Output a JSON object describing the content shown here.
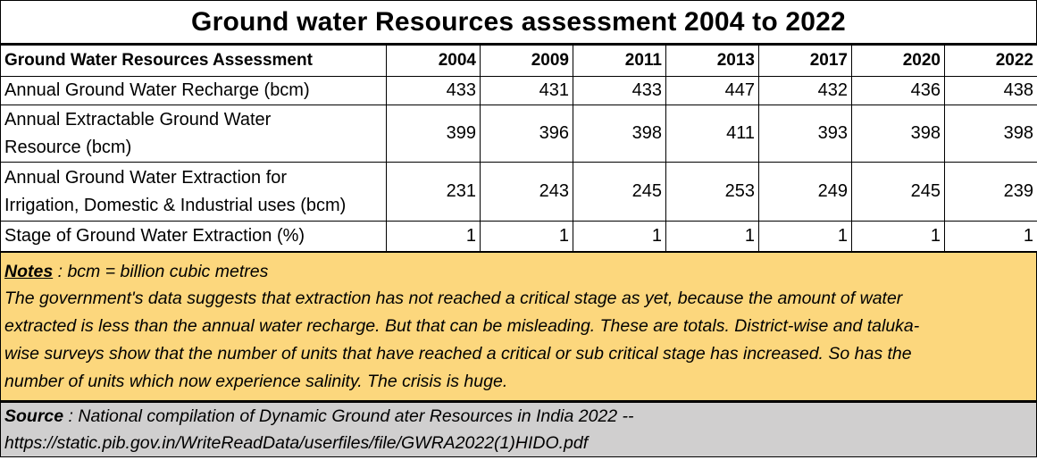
{
  "title": "Ground water Resources assessment 2004 to 2022",
  "table": {
    "header_label": "Ground Water Resources Assessment",
    "years": [
      "2004",
      "2009",
      "2011",
      "2013",
      "2017",
      "2020",
      "2022"
    ],
    "rows": [
      {
        "label_lines": [
          "Annual Ground Water Recharge (bcm)"
        ],
        "values": [
          "433",
          "431",
          "433",
          "447",
          "432",
          "436",
          "438"
        ]
      },
      {
        "label_lines": [
          "Annual Extractable Ground Water",
          "Resource (bcm)"
        ],
        "values": [
          "399",
          "396",
          "398",
          "411",
          "393",
          "398",
          "398"
        ]
      },
      {
        "label_lines": [
          "Annual Ground Water Extraction for",
          "Irrigation, Domestic & Industrial uses (bcm)"
        ],
        "values": [
          "231",
          "243",
          "245",
          "253",
          "249",
          "245",
          "239"
        ]
      },
      {
        "label_lines": [
          "Stage of Ground Water Extraction (%)"
        ],
        "values": [
          "1",
          "1",
          "1",
          "1",
          "1",
          "1",
          "1"
        ]
      }
    ]
  },
  "notes": {
    "keyword": "Notes",
    "definition": " : bcm = billion cubic metres",
    "lines": [
      "The government's data suggests that extraction has not reached a critical stage as yet, because the amount of water",
      "extracted is less than the annual water recharge.  But that can be misleading.  These are totals.  District-wise and taluka-",
      "wise surveys show that the number of units that have reached a critical or sub critical stage has increased.  So has the",
      "number of units which now experience salinity.  The crisis is huge."
    ],
    "background_color": "#fcd77d"
  },
  "source": {
    "keyword": "Source",
    "line1": " : National compilation of  Dynamic Ground ater Resources in India 2022 --",
    "line2": "https://static.pib.gov.in/WriteReadData/userfiles/file/GWRA2022(1)HIDO.pdf",
    "background_color": "#d0cfcf"
  }
}
